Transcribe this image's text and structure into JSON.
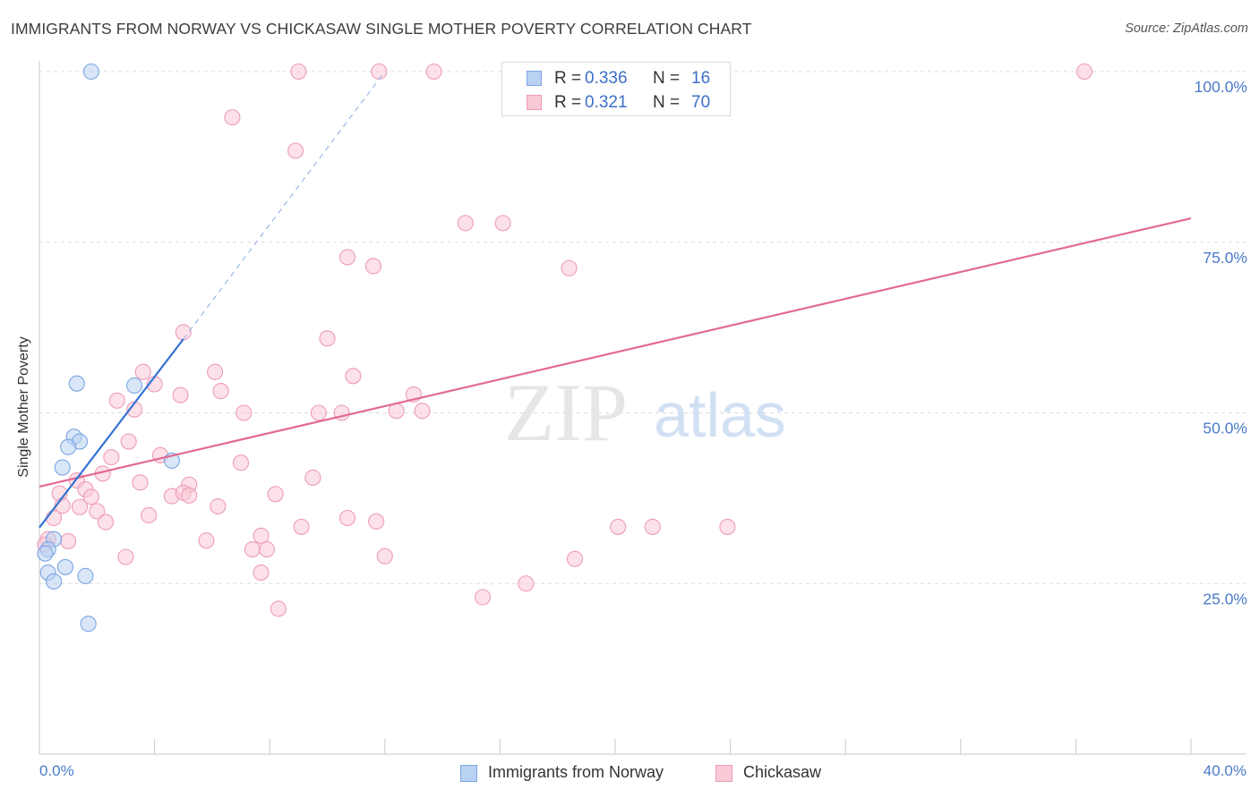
{
  "title": "IMMIGRANTS FROM NORWAY VS CHICKASAW SINGLE MOTHER POVERTY CORRELATION CHART",
  "source": "Source: ZipAtlas.com",
  "watermark": {
    "zip": "ZIP",
    "atlas": "atlas"
  },
  "legend_top": [
    {
      "r_label": "R =",
      "r_value": "0.336",
      "n_label": "N =",
      "n_value": "16"
    },
    {
      "r_label": "R =",
      "r_value": "0.321",
      "n_label": "N =",
      "n_value": "70"
    }
  ],
  "legend_bottom": [
    {
      "label": "Immigrants from Norway"
    },
    {
      "label": "Chickasaw"
    }
  ],
  "colors": {
    "norway_fill": "#b9d1f2",
    "norway_stroke": "#7aa6e3",
    "norway_line": "#3473d4",
    "chickasaw_fill": "#f9c9d6",
    "chickasaw_stroke": "#ee9cb6",
    "chickasaw_line": "#e26a93",
    "tick_label": "#4a7bc8",
    "grid": "#dcdcdc"
  },
  "chart_data": {
    "type": "scatter",
    "title": "IMMIGRANTS FROM NORWAY VS CHICKASAW SINGLE MOTHER POVERTY CORRELATION CHART",
    "xlabel": "",
    "ylabel": "Single Mother Poverty",
    "xlim": [
      0,
      40
    ],
    "ylim": [
      0,
      102.5
    ],
    "x_tick_labels": [
      "0.0%",
      "40.0%"
    ],
    "y_ticks": [
      25,
      50,
      75,
      100
    ],
    "y_tick_labels": [
      "25.0%",
      "50.0%",
      "75.0%",
      "100.0%"
    ],
    "grid": true,
    "series": [
      {
        "name": "Immigrants from Norway",
        "points": [
          [
            1.8,
            100.0
          ],
          [
            1.3,
            54.3
          ],
          [
            3.3,
            54.0
          ],
          [
            1.2,
            46.5
          ],
          [
            1.4,
            45.8
          ],
          [
            1.0,
            45.0
          ],
          [
            0.8,
            42.0
          ],
          [
            4.6,
            43.0
          ],
          [
            0.9,
            27.4
          ],
          [
            0.5,
            31.5
          ],
          [
            0.3,
            30.0
          ],
          [
            0.2,
            29.4
          ],
          [
            0.3,
            26.6
          ],
          [
            0.5,
            25.3
          ],
          [
            1.6,
            26.1
          ],
          [
            1.7,
            19.1
          ]
        ],
        "trend": {
          "x": [
            0.0,
            5.0
          ],
          "y": [
            33.2,
            60.8
          ]
        },
        "trend_extension": {
          "x": [
            5.0,
            12.0
          ],
          "y": [
            60.8,
            100.0
          ]
        }
      },
      {
        "name": "Chickasaw",
        "points": [
          [
            9.0,
            100.0
          ],
          [
            11.8,
            100.0
          ],
          [
            13.7,
            100.0
          ],
          [
            36.3,
            100.0
          ],
          [
            6.7,
            93.3
          ],
          [
            8.9,
            88.4
          ],
          [
            14.8,
            77.8
          ],
          [
            16.1,
            77.8
          ],
          [
            10.7,
            72.8
          ],
          [
            11.6,
            71.5
          ],
          [
            18.4,
            71.2
          ],
          [
            5.0,
            61.8
          ],
          [
            10.0,
            60.9
          ],
          [
            3.6,
            56.0
          ],
          [
            6.1,
            56.0
          ],
          [
            10.9,
            55.4
          ],
          [
            4.0,
            54.2
          ],
          [
            6.3,
            53.2
          ],
          [
            4.9,
            52.6
          ],
          [
            13.0,
            52.7
          ],
          [
            2.7,
            51.8
          ],
          [
            3.3,
            50.5
          ],
          [
            7.1,
            50.0
          ],
          [
            9.7,
            50.0
          ],
          [
            10.5,
            50.0
          ],
          [
            12.4,
            50.3
          ],
          [
            13.3,
            50.3
          ],
          [
            3.1,
            45.8
          ],
          [
            4.2,
            43.8
          ],
          [
            2.5,
            43.5
          ],
          [
            7.0,
            42.7
          ],
          [
            2.2,
            41.1
          ],
          [
            9.5,
            40.5
          ],
          [
            1.3,
            40.1
          ],
          [
            3.5,
            39.8
          ],
          [
            5.2,
            39.5
          ],
          [
            1.6,
            38.8
          ],
          [
            0.7,
            38.2
          ],
          [
            4.6,
            37.8
          ],
          [
            5.0,
            38.3
          ],
          [
            5.2,
            37.9
          ],
          [
            8.2,
            38.1
          ],
          [
            1.8,
            37.7
          ],
          [
            0.8,
            36.4
          ],
          [
            1.4,
            36.2
          ],
          [
            6.2,
            36.3
          ],
          [
            2.0,
            35.6
          ],
          [
            3.8,
            35.0
          ],
          [
            0.5,
            34.6
          ],
          [
            2.3,
            34.0
          ],
          [
            10.7,
            34.6
          ],
          [
            11.7,
            34.1
          ],
          [
            9.1,
            33.3
          ],
          [
            20.1,
            33.3
          ],
          [
            21.3,
            33.3
          ],
          [
            23.9,
            33.3
          ],
          [
            7.7,
            32.0
          ],
          [
            0.3,
            31.5
          ],
          [
            1.0,
            31.2
          ],
          [
            5.8,
            31.3
          ],
          [
            7.4,
            30.0
          ],
          [
            7.9,
            30.0
          ],
          [
            0.2,
            30.7
          ],
          [
            3.0,
            28.9
          ],
          [
            12.0,
            29.0
          ],
          [
            18.6,
            28.6
          ],
          [
            7.7,
            26.6
          ],
          [
            16.9,
            25.0
          ],
          [
            15.4,
            23.0
          ],
          [
            8.3,
            21.3
          ]
        ],
        "trend": {
          "x": [
            0.0,
            40.0
          ],
          "y": [
            39.2,
            78.5
          ]
        }
      }
    ]
  }
}
